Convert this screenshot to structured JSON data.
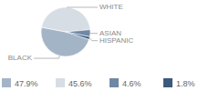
{
  "chart_data": {
    "type": "pie",
    "categories": [
      "BLACK",
      "WHITE",
      "ASIAN",
      "HISPANIC"
    ],
    "values": [
      47.9,
      45.6,
      4.6,
      1.8
    ],
    "value_labels": [
      "47.9%",
      "45.6%",
      "4.6%",
      "1.8%"
    ],
    "colors": [
      "#a4b4c7",
      "#d7dde5",
      "#6f88a5",
      "#3b5a7c"
    ],
    "legend": "bottom"
  }
}
